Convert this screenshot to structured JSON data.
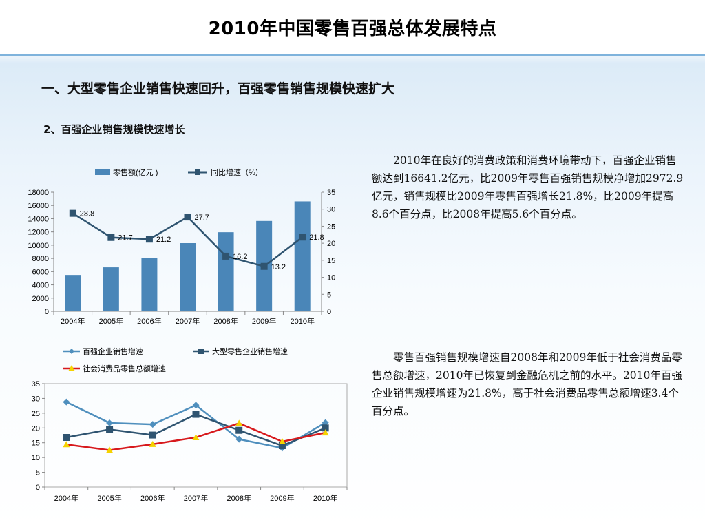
{
  "page": {
    "title": "2010年中国零售百强总体发展特点",
    "section_heading": "一、大型零售企业销售快速回升，百强零售销售规模快速扩大",
    "sub_heading": "2、百强企业销售规模快速增长",
    "paragraph_1": "2010年在良好的消费政策和消费环境带动下，百强企业销售额达到16641.2亿元，比2009年零售百强销售规模净增加2972.9亿元，销售规模比2009年零售百强增长21.8%，比2009年提高8.6个百分点，比2008年提高5.6个百分点。",
    "paragraph_2": "零售百强销售规模增速自2008年和2009年低于社会消费品零售总额增速，2010年已恢复到金融危机之前的水平。2010年百强企业销售规模增速为21.8%，高于社会消费品零售总额增速3.4个百分点。"
  },
  "colors": {
    "bar": "#4a86b8",
    "line_dark": "#2f5470",
    "line_light": "#4f8fbd",
    "line_red": "#d7191c",
    "marker_yellow": "#f5d200"
  },
  "chart_data": [
    {
      "type": "bar",
      "categories": [
        "2004年",
        "2005年",
        "2006年",
        "2007年",
        "2008年",
        "2009年",
        "2010年"
      ],
      "series": [
        {
          "name": "零售额(亿元 )",
          "kind": "bar",
          "axis": "left",
          "values": [
            5500,
            6650,
            8050,
            10300,
            11950,
            13650,
            16600
          ]
        },
        {
          "name": "同比增速（%）",
          "kind": "line",
          "axis": "right",
          "values": [
            28.8,
            21.7,
            21.2,
            27.7,
            16.2,
            13.2,
            21.8
          ],
          "labels": [
            "28.8",
            "21.7",
            "21.2",
            "27.7",
            "16.2",
            "13.2",
            "21.8"
          ]
        }
      ],
      "y_ticks": [
        "0",
        "2000",
        "4000",
        "6000",
        "8000",
        "10000",
        "12000",
        "14000",
        "16000",
        "18000"
      ],
      "y2_ticks": [
        "0",
        "5",
        "10",
        "15",
        "20",
        "25",
        "30",
        "35"
      ],
      "ylim": [
        0,
        18000
      ],
      "y2lim": [
        0,
        35
      ],
      "legend": "top"
    },
    {
      "type": "line",
      "categories": [
        "2004年",
        "2005年",
        "2006年",
        "2007年",
        "2008年",
        "2009年",
        "2010年"
      ],
      "series": [
        {
          "name": "百强企业销售增速",
          "values": [
            28.8,
            21.7,
            21.2,
            27.7,
            16.2,
            13.2,
            21.8
          ]
        },
        {
          "name": "大型零售企业销售增速",
          "values": [
            16.8,
            19.5,
            17.6,
            24.6,
            19.2,
            14.0,
            20.0
          ]
        },
        {
          "name": "社会消费品零售总额增速",
          "values": [
            14.4,
            12.5,
            14.5,
            16.8,
            21.6,
            15.4,
            18.4
          ]
        }
      ],
      "y_ticks": [
        "0",
        "5",
        "10",
        "15",
        "20",
        "25",
        "30",
        "35"
      ],
      "ylim": [
        0,
        35
      ],
      "grid": false,
      "legend": "top-left"
    }
  ]
}
